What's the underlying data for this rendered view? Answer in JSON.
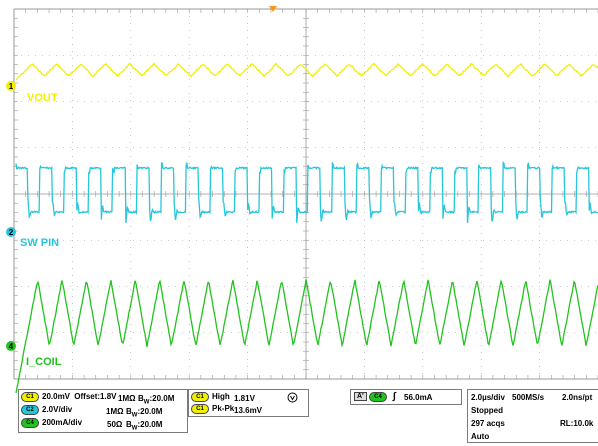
{
  "colors": {
    "ch1": "#f0f000",
    "ch2": "#27c6dc",
    "ch4": "#22c31e",
    "grid": "#9a9a9a",
    "trigger_marker": "#f39b18",
    "background": "#ffffff"
  },
  "traces": {
    "ch1_label": "VOUT",
    "ch2_label": "SW PIN",
    "ch4_label": "I_COIL",
    "ch1_marker": "1",
    "ch2_marker": "2",
    "ch4_marker": "4"
  },
  "channel_settings": [
    {
      "chip": "C1",
      "scale": "20.0mV",
      "offset": "Offset:1.8V",
      "impedance": "1MΩ",
      "bw_prefix": "B",
      "bw_sub": "W",
      "bw_value": ":20.0M"
    },
    {
      "chip": "C2",
      "scale": "2.0V/div",
      "offset": "",
      "impedance": "1MΩ",
      "bw_prefix": "B",
      "bw_sub": "W",
      "bw_value": ":20.0M"
    },
    {
      "chip": "C4",
      "scale": "200mA/div",
      "offset": "",
      "impedance": "50Ω",
      "bw_prefix": "B",
      "bw_sub": "W",
      "bw_value": ":20.0M"
    }
  ],
  "measurements": [
    {
      "chip": "C1",
      "label": "High",
      "value": "1.81V"
    },
    {
      "chip": "C1",
      "label": "Pk-Pk",
      "value": "13.6mV"
    }
  ],
  "measurement_icon": "warning-circle-icon",
  "trigger": {
    "badge": "A'",
    "chip": "C4",
    "slope_symbol": "∫",
    "level": "56.0mA"
  },
  "acquisition": {
    "timebase": "2.0µs/div",
    "sample_rate": "500MS/s",
    "resolution": "2.0ns/pt",
    "state": "Stopped",
    "acqs": "297 acqs",
    "record_length": "RL:10.0k",
    "mode": "Auto"
  }
}
